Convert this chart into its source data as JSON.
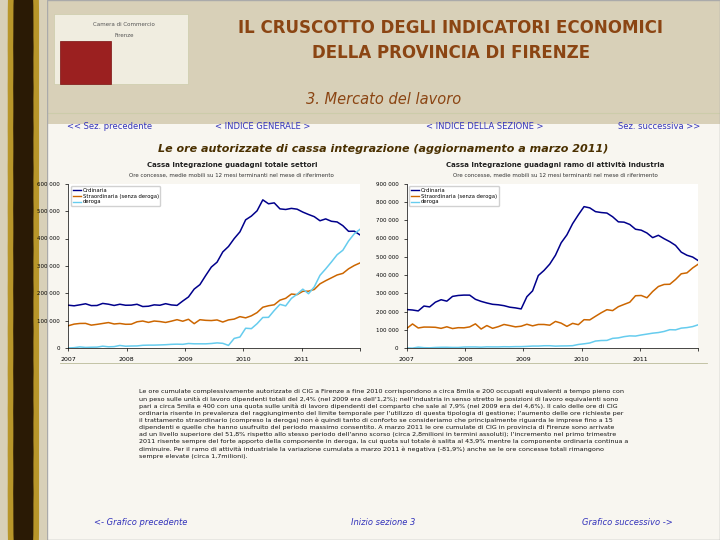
{
  "title_main": "IL CRUSCOTTO DEGLI INDICATORI ECONOMICI\nDELLA PROVINCIA DI FIRENZE",
  "title_section": "3. Mercato del lavoro",
  "chart_title": "Le ore autorizzate di cassa integrazione (aggiornamento a marzo 2011)",
  "left_chart_title1": "Cassa Integrazione guadagni totale settori",
  "left_chart_title2": "Ore concesse, medie mobili su 12 mesi terminanti nel mese di riferimento",
  "right_chart_title1": "Cassa Integrazione guadagni ramo di attività Industria",
  "right_chart_title2": "Ore concesse, medie mobili su 12 mesi terminanti nel mese di riferimento",
  "nav_left": "<< Sez. precedente",
  "nav_index": "< INDICE GENERALE >",
  "nav_section": "< INDICE DELLA SEZIONE >",
  "nav_right": "Sez. successiva >>",
  "bottom_nav_left": "<- Grafico precedente",
  "bottom_nav_center": "Inizio sezione 3",
  "bottom_nav_right": "Grafico successivo ->",
  "body_text": "Le ore cumulate complessivamente autorizzate di CIG a Firenze a fine 2010 corrispondono a circa 8mila e 200 occupati equivalenti a tempo pieno con\nun peso sulle unità di lavoro dipendenti totali del 2,4% (nel 2009 era dell'1,2%); nell'industria in senso stretto le posizioni di lavoro equivalenti sono\npari a circa 5mila e 400 con una quota sulle unità di lavoro dipendenti del comparto che sale al 7,9% (nel 2009 era del 4,6%). Il calo delle ore di CIG\nordinaria risente in prevalenza del raggiungimento del limite temporale per l'utilizzo di questa tipologia di gestione; l'aumento delle ore richieste per\nil trattamento straordinario (compreso la deroga) non è quindi tanto di conforto se consideriamo che principalmente riguarda le imprese fino a 15\ndipendenti e quelle che hanno usufruito del periodo massimo consentito. A marzo 2011 le ore cumulate di CIG in provincia di Firenze sono arrivate\nad un livello superiore del 51,8% rispetto allo stesso periodo dell'anno scorso (circa 2,8milioni in termini assoluti); l'incremento nel primo trimestre\n2011 risente sempre del forte apporto della componente in deroga, la cui quota sul totale è salita al 43,9% mentre la componente ordinaria continua a\ndiminuire. Per il ramo di attività industriale la variazione cumulata a marzo 2011 è negativa (-81,9%) anche se le ore concesse totali rimangono\nsempre elevate (circa 1,7milioni).",
  "bg_color": "#d8d0b8",
  "header_bg": "#f0ede0",
  "content_bg": "#f8f6f0",
  "header_title_color": "#8B4513",
  "section_title_color": "#8B4513",
  "chart_title_color": "#4a3000",
  "nav_color": "#3333bb",
  "body_text_color": "#111111",
  "line_dark_blue": "#00008B",
  "line_orange": "#CC6600",
  "line_light_blue": "#66CCEE",
  "spine_bg": "#7a6030",
  "ring_outer": "#b8962a",
  "ring_inner": "#2a1a05",
  "left_ylim": [
    0,
    600000
  ],
  "right_ylim": [
    0,
    900000
  ],
  "left_yticks": [
    0,
    100000,
    200000,
    300000,
    400000,
    500000,
    600000
  ],
  "left_ytick_labels": [
    "0",
    "100 000",
    "200 000",
    "300 000",
    "400 000",
    "500 000",
    "600 000"
  ],
  "right_yticks": [
    0,
    100000,
    200000,
    300000,
    400000,
    500000,
    600000,
    700000,
    800000,
    900000
  ],
  "right_ytick_labels": [
    "0",
    "100 000",
    "200 000",
    "300 000",
    "400 000",
    "500 000",
    "600 000",
    "700 000",
    "800 000",
    "900 000"
  ],
  "year_labels": [
    "2007",
    "2008",
    "2009",
    "2010",
    "2011",
    ""
  ],
  "legend_labels": [
    "Ordinaria",
    "Straordinaria (senza deroga)",
    "deroga"
  ]
}
